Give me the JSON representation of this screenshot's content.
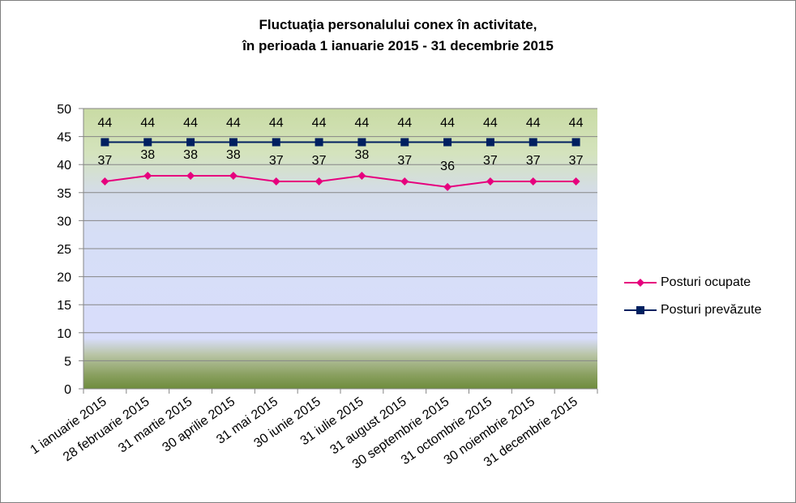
{
  "title": {
    "line1": "Fluctuaţia personalului conex în activitate,",
    "line2": "în perioada 1 ianuarie 2015 - 31 decembrie 2015"
  },
  "chart_data": {
    "type": "line",
    "title": "Fluctuaţia personalului conex în activitate, în perioada 1 ianuarie 2015 - 31 decembrie 2015",
    "categories": [
      "1 ianuarie 2015",
      "28 februarie 2015",
      "31 martie 2015",
      "30 aprilie 2015",
      "31 mai 2015",
      "30 iunie 2015",
      "31 iulie 2015",
      "31 august 2015",
      "30 septembrie 2015",
      "31 octombrie 2015",
      "30 noiembrie 2015",
      "31 decembrie 2015"
    ],
    "series": [
      {
        "name": "Posturi ocupate",
        "values": [
          37,
          38,
          38,
          38,
          37,
          37,
          38,
          37,
          36,
          37,
          37,
          37
        ],
        "color": "#e6007e",
        "marker": "diamond"
      },
      {
        "name": "Posturi prevăzute",
        "values": [
          44,
          44,
          44,
          44,
          44,
          44,
          44,
          44,
          44,
          44,
          44,
          44
        ],
        "color": "#002060",
        "marker": "square"
      }
    ],
    "ylim": [
      0,
      50
    ],
    "yticks": [
      "0",
      "5",
      "10",
      "15",
      "20",
      "25",
      "30",
      "35",
      "40",
      "45",
      "50"
    ],
    "grid": true,
    "legend_position": "right",
    "xlabel": "",
    "ylabel": ""
  }
}
